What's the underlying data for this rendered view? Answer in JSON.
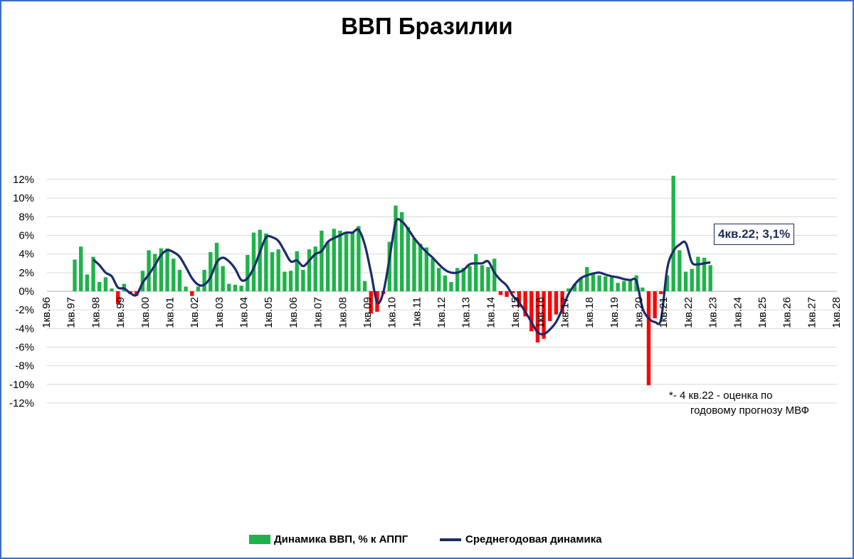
{
  "chart_data": {
    "type": "bar",
    "title": "ВВП Бразилии",
    "ylim": [
      -12,
      12
    ],
    "yticks": [
      "12%",
      "10%",
      "8%",
      "6%",
      "4%",
      "2%",
      "0%",
      "-2%",
      "-4%",
      "-6%",
      "-8%",
      "-10%",
      "-12%"
    ],
    "ytick_values": [
      12,
      10,
      8,
      6,
      4,
      2,
      0,
      -2,
      -4,
      -6,
      -8,
      -10,
      -12
    ],
    "xtick_labels": [
      "1кв.96",
      "1кв.97",
      "1кв.98",
      "1кв.99",
      "1кв.00",
      "1кв.01",
      "1кв.02",
      "1кв.03",
      "1кв.04",
      "1кв.05",
      "1кв.06",
      "1кв.07",
      "1кв.08",
      "1кв.09",
      "1кв.10",
      "1кв.11",
      "1кв.12",
      "1кв.13",
      "1кв.14",
      "1кв.15",
      "1кв.16",
      "1кв.17",
      "1кв.18",
      "1кв.19",
      "1кв.20",
      "1кв.21",
      "1кв.22",
      "1кв.23",
      "1кв.24",
      "1кв.25",
      "1кв.26",
      "1кв.27",
      "1кв.28"
    ],
    "x_start": "1кв.96",
    "grid": true,
    "legend_position": "bottom",
    "colors": {
      "positive": "#1db34a",
      "negative": "#ff0000",
      "line": "#1a2b6b",
      "frame": "#3a6fc4"
    },
    "series": [
      {
        "name": "Динамика ВВП, % к АППГ",
        "type": "bar",
        "values": [
          null,
          null,
          null,
          null,
          3.4,
          4.8,
          1.8,
          3.7,
          1.0,
          1.5,
          0.3,
          -1.4,
          0.8,
          -0.3,
          -0.5,
          2.2,
          4.4,
          4.0,
          4.6,
          4.6,
          3.5,
          2.3,
          0.5,
          -0.5,
          0.5,
          2.3,
          4.2,
          5.2,
          2.7,
          0.8,
          0.7,
          0.6,
          3.9,
          6.3,
          6.6,
          6.2,
          4.2,
          4.5,
          2.1,
          2.2,
          4.3,
          2.3,
          4.5,
          4.8,
          6.5,
          5.3,
          6.7,
          6.5,
          6.2,
          6.3,
          7.0,
          1.1,
          -2.4,
          -2.2,
          -0.3,
          5.3,
          9.2,
          8.5,
          6.9,
          5.7,
          5.1,
          4.7,
          3.5,
          2.5,
          1.7,
          1.0,
          2.5,
          2.5,
          2.7,
          4.0,
          2.8,
          2.6,
          3.5,
          -0.4,
          -0.6,
          -0.2,
          -1.7,
          -2.7,
          -4.3,
          -5.5,
          -5.1,
          -3.2,
          -2.5,
          -2.4,
          0.3,
          0.8,
          1.4,
          2.6,
          1.9,
          1.7,
          1.6,
          1.5,
          0.9,
          1.1,
          1.2,
          1.7,
          0.4,
          -10.1,
          -2.9,
          -0.3,
          1.7,
          12.4,
          4.4,
          2.1,
          2.4,
          3.7,
          3.6,
          2.8
        ]
      },
      {
        "name": "Среднегодовая динамика",
        "type": "line",
        "values": [
          null,
          null,
          null,
          null,
          null,
          null,
          null,
          3.4,
          2.8,
          2.0,
          1.6,
          0.4,
          0.3,
          -0.2,
          -0.4,
          0.9,
          1.8,
          2.8,
          3.9,
          4.4,
          4.2,
          3.7,
          2.6,
          1.4,
          0.7,
          0.7,
          1.5,
          3.1,
          3.6,
          3.2,
          2.4,
          1.2,
          1.4,
          2.5,
          4.2,
          5.8,
          5.8,
          5.4,
          4.3,
          3.2,
          3.3,
          2.7,
          3.3,
          4.0,
          4.3,
          5.3,
          5.7,
          6.0,
          6.3,
          6.3,
          6.6,
          5.0,
          2.0,
          -1.2,
          -0.1,
          3.5,
          7.4,
          7.5,
          6.7,
          5.7,
          4.9,
          4.2,
          3.6,
          2.9,
          2.3,
          2.0,
          2.0,
          2.3,
          2.9,
          3.0,
          3.0,
          3.2,
          2.0,
          1.2,
          0.6,
          -0.5,
          -1.2,
          -2.2,
          -3.3,
          -4.4,
          -4.6,
          -4.1,
          -3.3,
          -1.9,
          -0.3,
          0.7,
          1.4,
          1.7,
          1.9,
          2.0,
          1.8,
          1.6,
          1.5,
          1.3,
          1.2,
          1.1,
          -1.8,
          -2.9,
          -3.3,
          -3.0,
          2.4,
          4.3,
          5.0,
          5.2,
          3.1,
          2.9,
          3.0,
          3.1
        ]
      }
    ],
    "callout": "4кв.22; 3,1%",
    "note_line1": "*- 4 кв.22 - оценка по",
    "note_line2": "годовому прогнозу МВФ"
  }
}
